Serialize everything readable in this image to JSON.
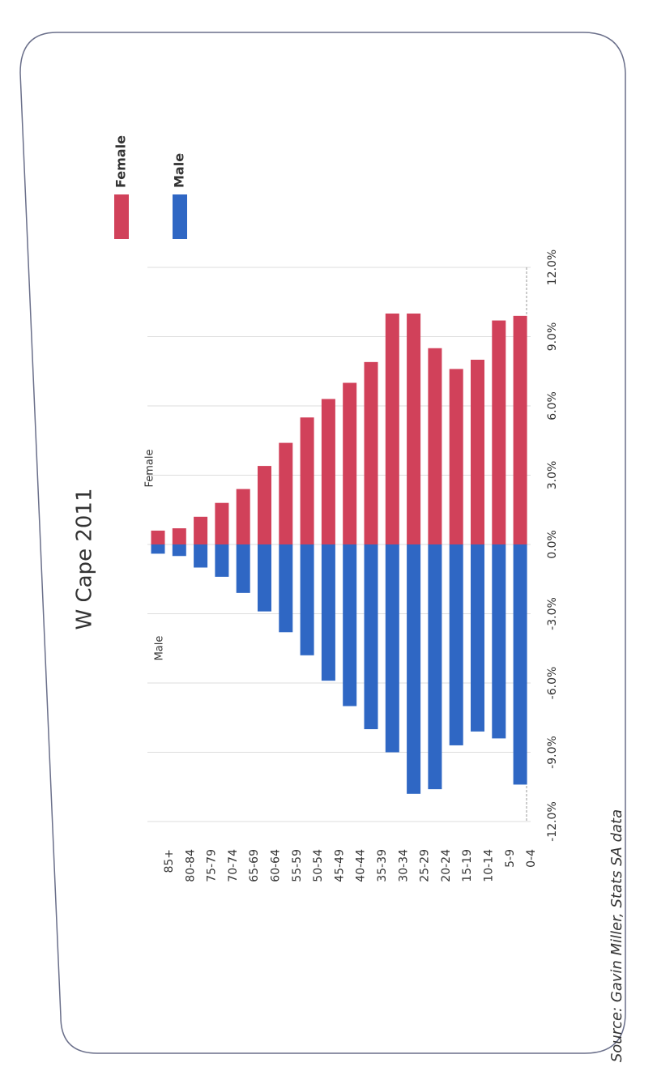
{
  "chart_data": {
    "type": "bar",
    "title": "W Cape 2011",
    "categories": [
      "85+",
      "80-84",
      "75-79",
      "70-74",
      "65-69",
      "60-64",
      "55-59",
      "50-54",
      "45-49",
      "40-44",
      "35-39",
      "30-34",
      "25-29",
      "20-24",
      "15-19",
      "10-14",
      "5-9",
      "0-4"
    ],
    "series": [
      {
        "name": "Female",
        "color": "#d1415a",
        "values": [
          0.6,
          0.7,
          1.2,
          1.8,
          2.4,
          3.4,
          4.4,
          5.5,
          6.3,
          7.0,
          7.9,
          10.0,
          10.0,
          8.5,
          7.6,
          8.0,
          9.7,
          9.9
        ]
      },
      {
        "name": "Male",
        "color": "#2f67c4",
        "values": [
          -0.4,
          -0.5,
          -1.0,
          -1.4,
          -2.1,
          -2.9,
          -3.8,
          -4.8,
          -5.9,
          -7.0,
          -8.0,
          -9.0,
          -10.8,
          -10.6,
          -8.7,
          -8.1,
          -8.4,
          -10.4
        ]
      }
    ],
    "ylim": [
      -12,
      12
    ],
    "yticks": [
      {
        "value": -12,
        "label": "-12.0%"
      },
      {
        "value": -9,
        "label": "-9.0%"
      },
      {
        "value": -6,
        "label": "-6.0%"
      },
      {
        "value": -3,
        "label": "-3.0%"
      },
      {
        "value": 0,
        "label": "0.0%"
      },
      {
        "value": 3,
        "label": "3.0%"
      },
      {
        "value": 6,
        "label": "6.0%"
      },
      {
        "value": 9,
        "label": "9.0%"
      },
      {
        "value": 12,
        "label": "12.0%"
      }
    ],
    "grid": true,
    "annotations": [
      "Female",
      "Male"
    ],
    "source": "Source: Gavin Miller, Stats SA data"
  }
}
